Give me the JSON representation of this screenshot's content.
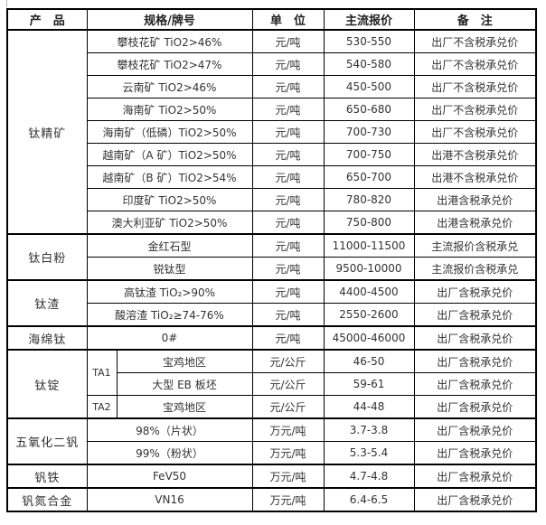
{
  "page": {
    "background_color": "#ffffff",
    "border_color": "#000000",
    "text_color": "#333333"
  },
  "table": {
    "headers": [
      "产　品",
      "规格/牌号",
      "单　位",
      "主流报价",
      "备　注"
    ],
    "groups": [
      {
        "product": "钛精矿",
        "rows": [
          {
            "spec": "攀枝花矿 TiO2>46%",
            "unit": "元/吨",
            "price": "530-550",
            "note": "出厂不含税承兑价"
          },
          {
            "spec": "攀枝花矿 TiO2>47%",
            "unit": "元/吨",
            "price": "540-580",
            "note": "出厂不含税承兑价"
          },
          {
            "spec": "云南矿 TiO2>46%",
            "unit": "元/吨",
            "price": "450-500",
            "note": "出厂不含税承兑价"
          },
          {
            "spec": "海南矿 TiO2>50%",
            "unit": "元/吨",
            "price": "650-680",
            "note": "出厂不含税承兑价"
          },
          {
            "spec": "海南矿（低磷）TiO2>50%",
            "unit": "元/吨",
            "price": "700-730",
            "note": "出厂不含税承兑价"
          },
          {
            "spec": "越南矿（A 矿）TiO2>50%",
            "unit": "元/吨",
            "price": "700-750",
            "note": "出港不含税承兑价"
          },
          {
            "spec": "越南矿（B 矿）TiO2>54%",
            "unit": "元/吨",
            "price": "650-700",
            "note": "出港不含税承兑价"
          },
          {
            "spec": "印度矿 TiO2>50%",
            "unit": "元/吨",
            "price": "780-820",
            "note": "出港含税承兑价"
          },
          {
            "spec": "澳大利亚矿 TiO2>50%",
            "unit": "元/吨",
            "price": "750-800",
            "note": "出港含税承兑价"
          }
        ]
      },
      {
        "product": "钛白粉",
        "rows": [
          {
            "spec": "金红石型",
            "unit": "元/吨",
            "price": "11000-11500",
            "note": "主流报价含税承兑"
          },
          {
            "spec": "锐钛型",
            "unit": "元/吨",
            "price": "9500-10000",
            "note": "主流报价含税承兑"
          }
        ]
      },
      {
        "product": "钛渣",
        "rows": [
          {
            "spec": "高钛渣 TiO₂>90%",
            "unit": "元/吨",
            "price": "4400-4500",
            "note": "出厂含税承兑价"
          },
          {
            "spec": "酸溶渣 TiO₂≥74-76%",
            "unit": "元/吨",
            "price": "2550-2600",
            "note": "出厂含税承兑价"
          }
        ]
      },
      {
        "product": "海绵钛",
        "rows": [
          {
            "spec": "0#",
            "unit": "元/吨",
            "price": "45000-46000",
            "note": "出厂含税承兑价"
          }
        ]
      },
      {
        "product": "钛锭",
        "rows": [
          {
            "grade": "TA1",
            "grade_rowspan": 2,
            "spec": "宝鸡地区",
            "unit": "元/公斤",
            "price": "46-50",
            "note": "出厂含税承兑价"
          },
          {
            "spec": "大型 EB 板坯",
            "unit": "元/公斤",
            "price": "59-61",
            "note": "出厂含税承兑价"
          },
          {
            "grade": "TA2",
            "grade_rowspan": 1,
            "spec": "宝鸡地区",
            "unit": "元/公斤",
            "price": "44-48",
            "note": "出厂含税承兑价"
          }
        ]
      },
      {
        "product": "五氧化二钒",
        "rows": [
          {
            "spec": "98%（片状）",
            "unit": "万元/吨",
            "price": "3.7-3.8",
            "note": "出厂含税承兑价"
          },
          {
            "spec": "99%（粉状）",
            "unit": "万元/吨",
            "price": "5.3-5.4",
            "note": "出厂含税承兑价"
          }
        ]
      },
      {
        "product": "钒铁",
        "rows": [
          {
            "spec": "FeV50",
            "unit": "万元/吨",
            "price": "4.7-4.8",
            "note": "出厂含税承兑价"
          }
        ]
      },
      {
        "product": "钒氮合金",
        "rows": [
          {
            "spec": "VN16",
            "unit": "万元/吨",
            "price": "6.4-6.5",
            "note": "出厂含税承兑价"
          }
        ]
      }
    ]
  }
}
